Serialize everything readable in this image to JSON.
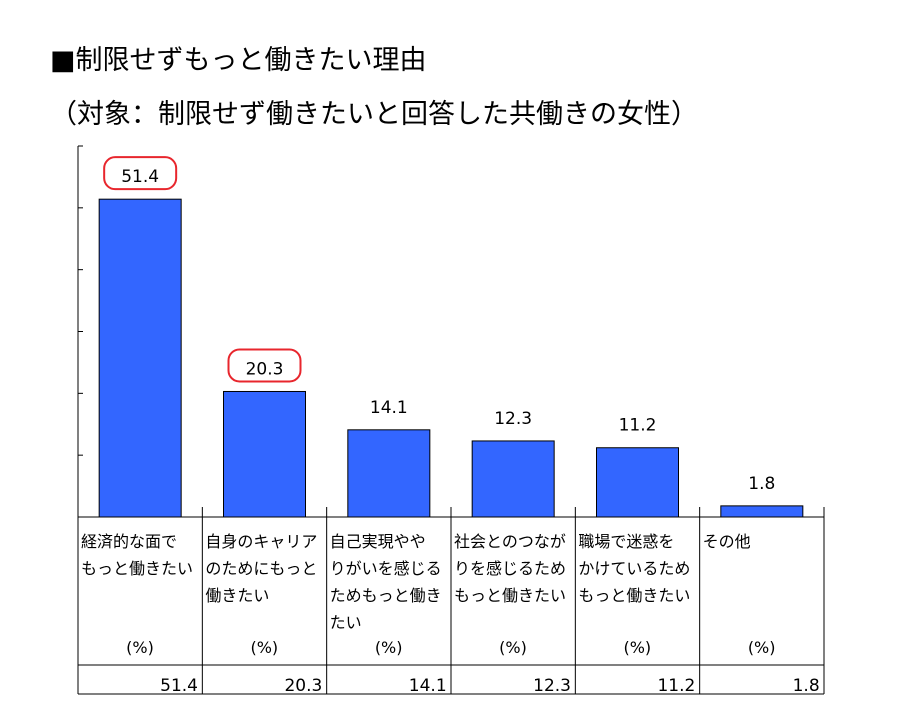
{
  "title": "■制限せずもっと働きたい理由",
  "subtitle": "（対象：制限せず働きたいと回答した共働きの女性）",
  "chart_data": {
    "type": "bar",
    "categories": [
      "経済的な面で\nもっと働きたい",
      "自身のキャリア\nのためにもっと\n働きたい",
      "自己実現やや\nりがいを感じる\nためもっと働き\nたい",
      "社会とのつなが\nりを感じるため\nもっと働きたい",
      "職場で迷惑を\nかけているため\nもっと働きたい",
      "その他"
    ],
    "values": [
      51.4,
      20.3,
      14.1,
      12.3,
      11.2,
      1.8
    ],
    "value_labels": [
      "51.4",
      "20.3",
      "14.1",
      "12.3",
      "11.2",
      "1.8"
    ],
    "units": [
      "(%)",
      "(%)",
      "(%)",
      "(%)",
      "(%)",
      "(%)"
    ],
    "highlighted": [
      0,
      1
    ],
    "ylim": [
      0,
      60
    ],
    "grid": false,
    "bar_color": "#3366ff",
    "highlight_color": "#e8262d"
  }
}
